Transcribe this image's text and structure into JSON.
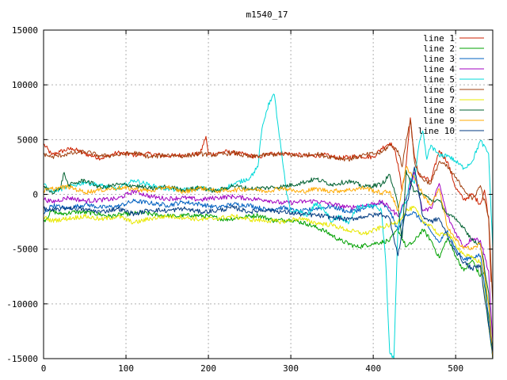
{
  "chart_data": {
    "type": "line",
    "title": "m1540_17",
    "xlabel": "",
    "ylabel": "",
    "xlim": [
      0,
      545
    ],
    "ylim": [
      -15000,
      15000
    ],
    "xticks": [
      0,
      100,
      200,
      300,
      400,
      500
    ],
    "yticks": [
      -15000,
      -10000,
      -5000,
      0,
      5000,
      10000,
      15000
    ],
    "grid": true,
    "legend_position": "top-right",
    "series": [
      {
        "name": "line 1",
        "color": "#cc2200",
        "x": [
          0,
          10,
          20,
          35,
          50,
          70,
          90,
          110,
          130,
          150,
          170,
          190,
          197,
          200,
          220,
          240,
          260,
          280,
          300,
          320,
          340,
          360,
          380,
          400,
          410,
          420,
          425,
          430,
          435,
          440,
          445,
          450,
          455,
          460,
          470,
          480,
          490,
          500,
          510,
          520,
          530,
          535,
          540,
          543
        ],
        "y": [
          4600,
          3600,
          3900,
          4200,
          3700,
          3300,
          3800,
          3600,
          3700,
          3500,
          3600,
          3700,
          5300,
          3600,
          3900,
          3700,
          3400,
          3800,
          3700,
          3500,
          3600,
          3300,
          3500,
          3400,
          4200,
          4700,
          4300,
          2800,
          300,
          2800,
          7000,
          3400,
          1800,
          1600,
          1200,
          4000,
          3000,
          600,
          -500,
          0,
          -900,
          400,
          -2200,
          -8000
        ]
      },
      {
        "name": "line 2",
        "color": "#00a000",
        "x": [
          0,
          10,
          20,
          40,
          60,
          80,
          100,
          120,
          140,
          160,
          180,
          200,
          220,
          240,
          260,
          280,
          300,
          320,
          340,
          360,
          380,
          400,
          420,
          430,
          440,
          450,
          460,
          470,
          480,
          490,
          500,
          510,
          520,
          530,
          535,
          540,
          545
        ],
        "y": [
          -2500,
          -1500,
          -1800,
          -1600,
          -1700,
          -2000,
          -1800,
          -1700,
          -1900,
          -2000,
          -1900,
          -2000,
          -2300,
          -2100,
          -1900,
          -2400,
          -2300,
          -2700,
          -3300,
          -4200,
          -4800,
          -4500,
          -4200,
          -3200,
          -4800,
          -4300,
          -3200,
          -4200,
          -5800,
          -4000,
          -5600,
          -7000,
          -6000,
          -7500,
          -7000,
          -12000,
          -15000
        ]
      },
      {
        "name": "line 3",
        "color": "#0060c0",
        "x": [
          0,
          10,
          30,
          50,
          70,
          90,
          110,
          130,
          150,
          170,
          190,
          210,
          230,
          250,
          270,
          290,
          310,
          330,
          350,
          370,
          390,
          410,
          420,
          430,
          440,
          450,
          460,
          470,
          480,
          490,
          500,
          510,
          520,
          530,
          540,
          545
        ],
        "y": [
          -1800,
          -1000,
          -1300,
          -900,
          -1200,
          -1100,
          -600,
          -800,
          -1000,
          -700,
          -900,
          -1200,
          -900,
          -1000,
          -1400,
          -1200,
          -1600,
          -1300,
          -1100,
          -1600,
          -1300,
          -800,
          -1500,
          -3300,
          -1800,
          -1700,
          -2500,
          -3400,
          -4400,
          -3300,
          -5000,
          -6000,
          -5700,
          -5600,
          -11000,
          -15000
        ]
      },
      {
        "name": "line 4",
        "color": "#a000c0",
        "x": [
          0,
          10,
          30,
          50,
          70,
          90,
          110,
          130,
          150,
          170,
          190,
          210,
          230,
          250,
          270,
          290,
          310,
          330,
          350,
          370,
          390,
          410,
          420,
          430,
          440,
          450,
          460,
          470,
          480,
          490,
          500,
          510,
          520,
          530,
          540,
          545
        ],
        "y": [
          -400,
          -700,
          -300,
          -600,
          -500,
          -400,
          300,
          -200,
          -400,
          -300,
          -500,
          -300,
          -200,
          -400,
          -500,
          -800,
          -700,
          -600,
          -900,
          -1200,
          -1000,
          -700,
          -1200,
          -2000,
          -300,
          2000,
          -1500,
          -1300,
          1000,
          -2000,
          -3500,
          -4800,
          -4000,
          -4200,
          -7000,
          -13500
        ]
      },
      {
        "name": "line 5",
        "color": "#00d8d8",
        "x": [
          0,
          10,
          30,
          50,
          70,
          90,
          110,
          130,
          150,
          170,
          190,
          210,
          230,
          250,
          260,
          265,
          270,
          275,
          280,
          285,
          290,
          295,
          300,
          310,
          320,
          330,
          340,
          350,
          360,
          370,
          380,
          390,
          400,
          410,
          415,
          420,
          425,
          430,
          435,
          440,
          445,
          450,
          455,
          460,
          465,
          470,
          480,
          490,
          500,
          510,
          520,
          530,
          540,
          545
        ],
        "y": [
          900,
          200,
          700,
          1100,
          800,
          500,
          1300,
          800,
          500,
          400,
          600,
          300,
          900,
          1500,
          2500,
          6000,
          7500,
          8600,
          9100,
          6000,
          3000,
          0,
          -1600,
          -1500,
          -2000,
          -800,
          -1400,
          -2500,
          -2000,
          -2700,
          -1200,
          -1100,
          -1000,
          -1500,
          -6000,
          -14500,
          -15000,
          -3000,
          -1300,
          -600,
          1500,
          1000,
          4300,
          5800,
          3200,
          4500,
          3500,
          3600,
          3000,
          2400,
          3000,
          4900,
          3700,
          -5000
        ]
      },
      {
        "name": "line 6",
        "color": "#a04010",
        "x": [
          0,
          10,
          30,
          50,
          70,
          90,
          110,
          130,
          150,
          170,
          190,
          210,
          230,
          250,
          270,
          290,
          310,
          330,
          350,
          370,
          390,
          410,
          420,
          430,
          435,
          440,
          445,
          450,
          455,
          460,
          470,
          480,
          490,
          500,
          510,
          520,
          530,
          540,
          545
        ],
        "y": [
          3700,
          3400,
          3700,
          3900,
          3500,
          3600,
          3800,
          3400,
          3600,
          3500,
          3700,
          3600,
          3800,
          3400,
          3600,
          3700,
          3500,
          3700,
          3400,
          3200,
          3600,
          3800,
          4500,
          4000,
          2500,
          5000,
          6800,
          3000,
          2000,
          1400,
          1000,
          3000,
          2500,
          1500,
          500,
          -500,
          800,
          -2000,
          -10000
        ]
      },
      {
        "name": "line 7",
        "color": "#e8e800",
        "x": [
          0,
          10,
          30,
          50,
          70,
          90,
          110,
          130,
          150,
          170,
          190,
          210,
          230,
          250,
          270,
          290,
          310,
          330,
          350,
          370,
          390,
          410,
          420,
          430,
          440,
          450,
          460,
          470,
          480,
          490,
          500,
          510,
          520,
          530,
          540,
          545
        ],
        "y": [
          -2100,
          -2400,
          -2200,
          -2000,
          -2300,
          -2000,
          -2600,
          -2200,
          -2000,
          -2100,
          -2300,
          -2200,
          -2000,
          -2300,
          -2400,
          -2500,
          -2200,
          -2600,
          -2800,
          -3300,
          -3600,
          -3000,
          -2800,
          -2500,
          -1500,
          -1200,
          -2500,
          -2800,
          -3800,
          -3500,
          -4600,
          -5500,
          -5800,
          -6200,
          -12000,
          -14500
        ]
      },
      {
        "name": "line 8",
        "color": "#006030",
        "x": [
          0,
          10,
          20,
          25,
          30,
          50,
          70,
          90,
          110,
          130,
          150,
          170,
          190,
          210,
          230,
          250,
          270,
          290,
          310,
          330,
          350,
          370,
          390,
          410,
          420,
          430,
          435,
          440,
          445,
          450,
          460,
          470,
          480,
          490,
          500,
          510,
          520,
          530,
          540,
          545
        ],
        "y": [
          700,
          200,
          500,
          2000,
          800,
          1300,
          600,
          900,
          800,
          500,
          700,
          400,
          600,
          300,
          800,
          500,
          600,
          700,
          1000,
          1400,
          900,
          1200,
          700,
          900,
          1800,
          -1000,
          -4000,
          2200,
          1000,
          300,
          0,
          -500,
          -600,
          -1800,
          -2300,
          -3000,
          -4200,
          -4500,
          -9000,
          -15000
        ]
      },
      {
        "name": "line 9",
        "color": "#ffaa00",
        "x": [
          0,
          10,
          30,
          50,
          70,
          90,
          110,
          130,
          150,
          170,
          190,
          210,
          230,
          250,
          270,
          290,
          310,
          330,
          350,
          370,
          390,
          410,
          420,
          430,
          440,
          450,
          460,
          470,
          480,
          490,
          500,
          510,
          520,
          530,
          540,
          545
        ],
        "y": [
          300,
          500,
          700,
          200,
          400,
          600,
          500,
          300,
          700,
          200,
          600,
          300,
          400,
          500,
          300,
          600,
          200,
          500,
          300,
          400,
          600,
          100,
          300,
          -1500,
          2500,
          1500,
          0,
          -1000,
          500,
          -3000,
          -4200,
          -4800,
          -5000,
          -4500,
          -10000,
          -15000
        ]
      },
      {
        "name": "line 10",
        "color": "#003a80",
        "x": [
          0,
          10,
          30,
          50,
          70,
          90,
          110,
          130,
          150,
          170,
          190,
          210,
          230,
          250,
          270,
          290,
          310,
          330,
          350,
          370,
          390,
          410,
          420,
          430,
          440,
          450,
          460,
          470,
          480,
          490,
          500,
          510,
          520,
          530,
          540,
          545
        ],
        "y": [
          -1300,
          -1500,
          -1200,
          -1400,
          -1600,
          -1300,
          -1800,
          -1400,
          -1500,
          -1300,
          -1600,
          -1500,
          -1200,
          -1600,
          -1400,
          -1600,
          -1800,
          -1900,
          -2100,
          -2300,
          -2000,
          -1800,
          -2200,
          -5600,
          -1200,
          2500,
          -2000,
          -2500,
          -2200,
          -3800,
          -5200,
          -6200,
          -6800,
          -6500,
          -12000,
          -14500
        ]
      }
    ]
  }
}
